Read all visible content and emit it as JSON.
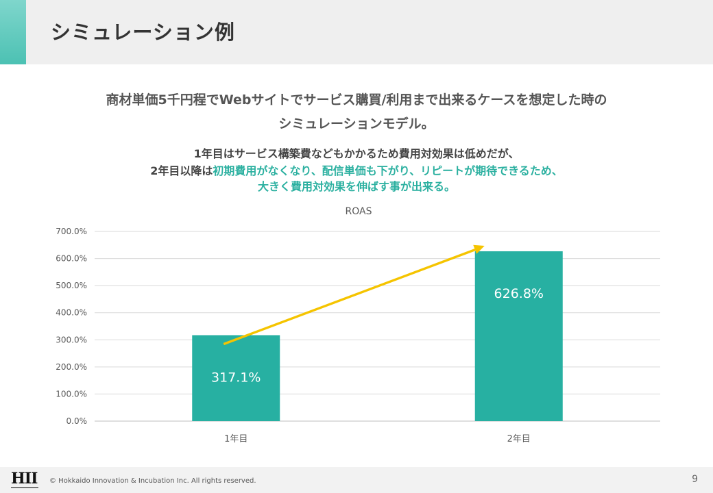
{
  "header": {
    "title": "シミュレーション例"
  },
  "lead": {
    "line1": "商材単価5千円程でWebサイトでサービス購買/利用まで出来るケースを想定した時の",
    "line2": "シミュレーションモデル。"
  },
  "note": {
    "line1": "1年目はサービス構築費などもかかるため費用対効果は低めだが、",
    "line2_prefix": "2年目以降は",
    "line2_highlight": "初期費用がなくなり、配信単価も下がり、リピートが期待できるため、",
    "line3_highlight": "大きく費用対効果を伸ばす事が出来る。"
  },
  "chart_data": {
    "type": "bar",
    "title": "ROAS",
    "categories": [
      "1年目",
      "2年目"
    ],
    "values": [
      317.1,
      626.8
    ],
    "data_labels": [
      "317.1%",
      "626.8%"
    ],
    "yticks": [
      "0.0%",
      "100.0%",
      "200.0%",
      "300.0%",
      "400.0%",
      "500.0%",
      "600.0%",
      "700.0%"
    ],
    "ylim": [
      0,
      700
    ],
    "grid": true,
    "bar_color": "#27b0a2",
    "trend_arrow_color": "#f5c400"
  },
  "footer": {
    "logo": "HII",
    "copyright": "© Hokkaido Innovation & Incubation Inc. All rights reserved.",
    "page_number": "9"
  }
}
